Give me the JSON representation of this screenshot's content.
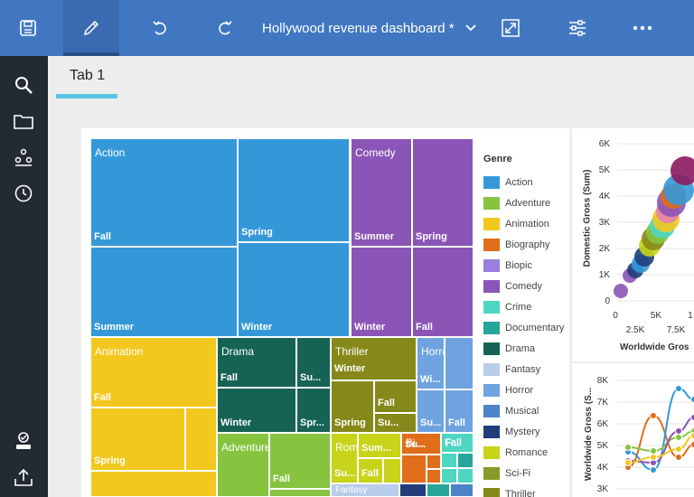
{
  "header": {
    "title": "Hollywood revenue dashboard *"
  },
  "tabs": [
    {
      "label": "Tab 1"
    }
  ],
  "treemap": {
    "cells": [
      {
        "genre": "Action",
        "label_top": "Action",
        "label_bot": "Fall",
        "color": "#3498d8"
      },
      {
        "genre": "Action",
        "label_bot": "Spring",
        "color": "#3498d8"
      },
      {
        "genre": "Action",
        "label_bot": "Summer",
        "color": "#3498d8"
      },
      {
        "genre": "Action",
        "label_bot": "Winter",
        "color": "#3498d8"
      },
      {
        "genre": "Comedy",
        "label_top": "Comedy",
        "label_bot": "Summer",
        "color": "#8a55b6"
      },
      {
        "genre": "Comedy",
        "label_bot": "Spring",
        "color": "#8a55b6"
      },
      {
        "genre": "Comedy",
        "label_bot": "Winter",
        "color": "#8a55b6"
      },
      {
        "genre": "Comedy",
        "label_bot": "Fall",
        "color": "#8a55b6"
      },
      {
        "genre": "Animation",
        "label_top": "Animation",
        "label_bot": "Fall",
        "color": "#f2c81e"
      },
      {
        "genre": "Animation",
        "label_bot": "Spring",
        "color": "#f2c81e"
      },
      {
        "genre": "Drama",
        "label_top": "Drama",
        "label_bot": "Fall",
        "color": "#166356"
      },
      {
        "genre": "Drama",
        "label_bot": "Su...",
        "color": "#166356"
      },
      {
        "genre": "Drama",
        "label_bot": "Winter",
        "color": "#166356"
      },
      {
        "genre": "Drama",
        "label_bot": "Spr...",
        "color": "#166356"
      },
      {
        "genre": "Thriller",
        "label_top": "Thriller",
        "label_mid": "Winter",
        "color": "#86891a"
      },
      {
        "genre": "Thriller",
        "label_bot": "Fall",
        "color": "#86891a"
      },
      {
        "genre": "Thriller",
        "label_bot": "Spring",
        "color": "#86891a"
      },
      {
        "genre": "Thriller",
        "label_bot": "Su...",
        "color": "#86891a"
      },
      {
        "genre": "Horror",
        "label_top": "Horror",
        "label_bot": "Wi...",
        "color": "#6fa3e0"
      },
      {
        "genre": "Horror",
        "label_bot": "Su...",
        "color": "#6fa3e0"
      },
      {
        "genre": "Horror",
        "label_bot": "Fall",
        "color": "#6fa3e0"
      },
      {
        "genre": "Adventure",
        "label_top": "Adventure",
        "label_bot": "Fall",
        "color": "#86c440"
      },
      {
        "genre": "Romance",
        "label_top": "Romance",
        "label_bot": "Su...",
        "color": "#c7d419"
      },
      {
        "genre": "Romance",
        "label_bot": "Sum...",
        "color": "#c7d419"
      },
      {
        "genre": "Romance",
        "label_bot": "Fall",
        "color": "#c7d419"
      },
      {
        "genre": "Biography",
        "label_top": "Bi...",
        "label_bot": "Su...",
        "color": "#e06d19"
      },
      {
        "genre": "Crime",
        "label_top": "F...",
        "label_bot": "Fall",
        "color": "#4ed6c1"
      },
      {
        "genre": "Fantasy",
        "label_top": "Fantasy",
        "color": "#b8cde9"
      }
    ]
  },
  "legend": {
    "title": "Genre",
    "items": [
      {
        "label": "Action",
        "color": "#3498d8"
      },
      {
        "label": "Adventure",
        "color": "#86c440"
      },
      {
        "label": "Animation",
        "color": "#f2c81e"
      },
      {
        "label": "Biography",
        "color": "#e06d19"
      },
      {
        "label": "Biopic",
        "color": "#9b7fe0"
      },
      {
        "label": "Comedy",
        "color": "#8a55b6"
      },
      {
        "label": "Crime",
        "color": "#4ed6c1"
      },
      {
        "label": "Documentary",
        "color": "#26a69a"
      },
      {
        "label": "Drama",
        "color": "#166356"
      },
      {
        "label": "Fantasy",
        "color": "#b8cde9"
      },
      {
        "label": "Horror",
        "color": "#6fa3e0"
      },
      {
        "label": "Musical",
        "color": "#4d83c7"
      },
      {
        "label": "Mystery",
        "color": "#213d7a"
      },
      {
        "label": "Romance",
        "color": "#c7d419"
      },
      {
        "label": "Sci-Fi",
        "color": "#8a9a28"
      },
      {
        "label": "Thriller",
        "color": "#86891a"
      }
    ]
  },
  "scatter": {
    "ylabel": "Domestic Gross (Sum)",
    "xlabel": "Worldwide Gros",
    "yticks": [
      "6K",
      "5K",
      "4K",
      "3K",
      "2K",
      "1K",
      "0"
    ],
    "xticks": [
      "0",
      "2.5K",
      "5K",
      "7.5K",
      "1"
    ]
  },
  "line": {
    "ylabel": "Worldwide Gross (S...",
    "yticks": [
      "8K",
      "7K",
      "6K",
      "5K",
      "4K",
      "3K"
    ]
  }
}
